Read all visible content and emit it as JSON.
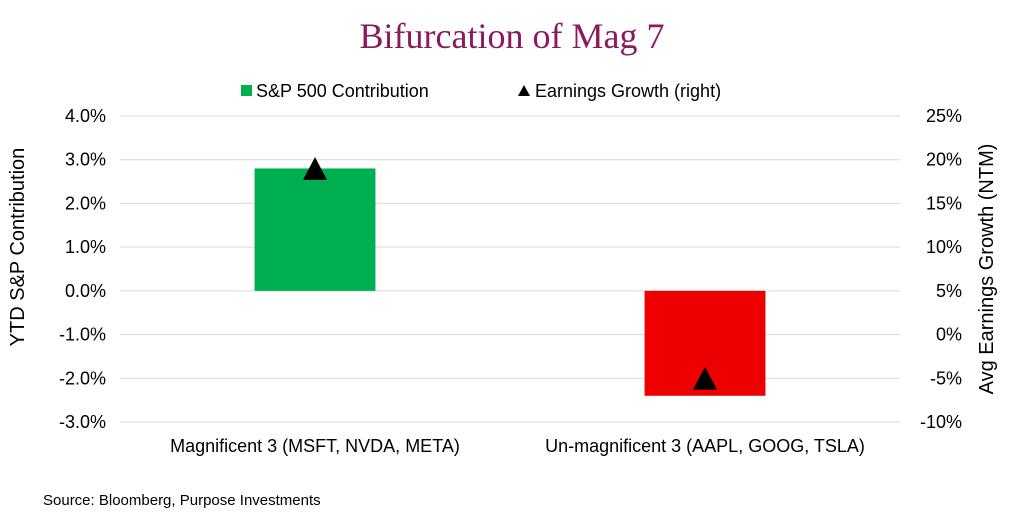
{
  "colors": {
    "title": "#8B1A5C",
    "positive_bar": "#00B050",
    "negative_bar": "#EE0000",
    "marker": "#000000",
    "grid": "#D9D9D9"
  },
  "chart_data": {
    "type": "bar",
    "title": "Bifurcation of Mag 7",
    "categories": [
      "Magnificent 3 (MSFT, NVDA, META)",
      "Un-magnificent 3 (AAPL, GOOG, TSLA)"
    ],
    "series": [
      {
        "name": "S&P 500 Contribution",
        "axis": "left",
        "kind": "bar",
        "values": [
          2.8,
          -2.4
        ]
      },
      {
        "name": "Earnings Growth (right)",
        "axis": "right",
        "kind": "marker",
        "marker": "triangle",
        "values": [
          19,
          -5
        ]
      }
    ],
    "ylabel": "YTD S&P Contribution",
    "y2label": "Avg Earnings Growth (NTM)",
    "ylim": [
      -3,
      4
    ],
    "y2lim": [
      -10,
      25
    ],
    "yticks": [
      "4.0%",
      "3.0%",
      "2.0%",
      "1.0%",
      "0.0%",
      "-1.0%",
      "-2.0%",
      "-3.0%"
    ],
    "y2ticks": [
      "25%",
      "20%",
      "15%",
      "10%",
      "5%",
      "0%",
      "-5%",
      "-10%"
    ],
    "grid": true,
    "legend_position": "top-center",
    "source": "Source: Bloomberg, Purpose Investments"
  }
}
